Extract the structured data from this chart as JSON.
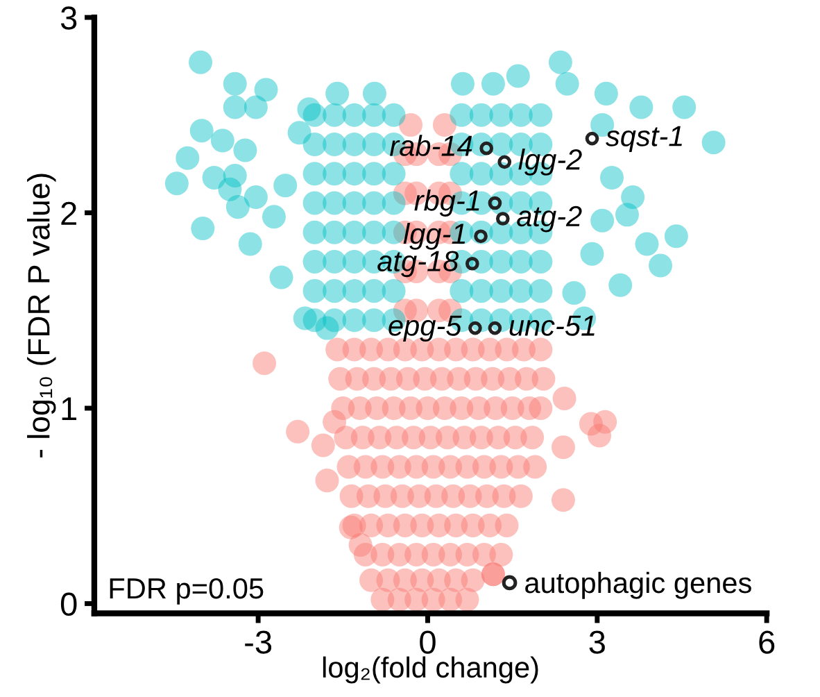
{
  "chart_data": {
    "type": "scatter",
    "xlabel": "log₂(fold change)",
    "ylabel": "- log₁₀ (FDR P value)",
    "xlim": [
      -5.9,
      6
    ],
    "ylim": [
      -0.05,
      3
    ],
    "xticks": [
      -3,
      0,
      3,
      6
    ],
    "yticks": [
      0,
      1,
      2,
      3
    ],
    "grid": false,
    "legend": "bottom right",
    "marker": "circle",
    "series": [
      {
        "color": "#f8766d",
        "x": [
          -0.8,
          -0.5,
          -0.2,
          0.1,
          0.4,
          0.7,
          -1.0,
          -0.7,
          -0.4,
          -0.1,
          0.2,
          0.5,
          0.8,
          1.16,
          -1.1,
          -0.8,
          -0.5,
          -0.2,
          0.1,
          0.4,
          0.7,
          1.0,
          1.3,
          -1.3,
          -1.0,
          -0.7,
          -0.4,
          -0.1,
          0.2,
          0.5,
          0.8,
          1.1,
          1.4,
          -1.35,
          -1.05,
          -0.75,
          -0.45,
          -0.15,
          0.15,
          0.45,
          0.75,
          1.05,
          1.35,
          1.65,
          -1.4,
          -1.1,
          -0.8,
          -0.5,
          -0.2,
          0.1,
          0.4,
          0.7,
          1.0,
          1.3,
          1.6,
          1.9,
          -1.45,
          -1.15,
          -0.85,
          -0.55,
          -0.25,
          0.05,
          0.35,
          0.65,
          0.95,
          1.25,
          1.55,
          1.85,
          -1.5,
          -1.2,
          -0.9,
          -0.6,
          -0.3,
          0.0,
          0.3,
          0.6,
          0.9,
          1.2,
          1.5,
          1.8,
          2.0,
          -1.55,
          -1.25,
          -0.95,
          -0.65,
          -0.35,
          -0.05,
          0.25,
          0.55,
          0.85,
          1.15,
          1.45,
          1.75,
          2.05,
          -1.6,
          -1.3,
          -1.0,
          -0.7,
          -0.4,
          -0.1,
          0.2,
          0.5,
          0.8,
          1.1,
          1.4,
          1.7,
          2.0,
          -0.4,
          -0.2,
          0.2,
          0.4,
          -0.4,
          -0.2,
          0.2,
          0.4,
          -0.4,
          -0.2,
          0.2,
          0.4,
          -0.4,
          -0.2,
          0.2,
          0.4,
          -0.4,
          -0.2,
          0.2,
          0.4,
          -0.3,
          0.3,
          -2.89,
          -2.3,
          -1.85,
          -1.78,
          -1.65,
          -1.36,
          -1.19,
          2.89,
          3.14,
          3.04,
          2.42,
          2.4,
          2.4,
          1.16
        ],
        "values": [
          0.02,
          0.02,
          0.02,
          0.02,
          0.02,
          0.02,
          0.12,
          0.12,
          0.12,
          0.12,
          0.12,
          0.12,
          0.12,
          0.15,
          0.25,
          0.25,
          0.25,
          0.25,
          0.25,
          0.25,
          0.25,
          0.25,
          0.25,
          0.4,
          0.4,
          0.4,
          0.4,
          0.4,
          0.4,
          0.4,
          0.4,
          0.4,
          0.4,
          0.55,
          0.55,
          0.55,
          0.55,
          0.55,
          0.55,
          0.55,
          0.55,
          0.55,
          0.55,
          0.55,
          0.7,
          0.7,
          0.7,
          0.7,
          0.7,
          0.7,
          0.7,
          0.7,
          0.7,
          0.7,
          0.7,
          0.7,
          0.85,
          0.85,
          0.85,
          0.85,
          0.85,
          0.85,
          0.85,
          0.85,
          0.85,
          0.85,
          0.85,
          0.85,
          1.0,
          1.0,
          1.0,
          1.0,
          1.0,
          1.0,
          1.0,
          1.0,
          1.0,
          1.0,
          1.0,
          1.0,
          1.0,
          1.15,
          1.15,
          1.15,
          1.15,
          1.15,
          1.15,
          1.15,
          1.15,
          1.15,
          1.15,
          1.15,
          1.15,
          1.15,
          1.3,
          1.3,
          1.3,
          1.3,
          1.3,
          1.3,
          1.3,
          1.3,
          1.3,
          1.3,
          1.3,
          1.3,
          1.3,
          1.5,
          1.5,
          1.5,
          1.5,
          1.7,
          1.7,
          1.7,
          1.7,
          1.9,
          1.9,
          1.9,
          1.9,
          2.1,
          2.1,
          2.1,
          2.1,
          2.3,
          2.3,
          2.3,
          2.3,
          2.45,
          2.45,
          1.23,
          0.88,
          0.81,
          0.63,
          0.93,
          0.39,
          0.3,
          0.92,
          0.93,
          0.86,
          1.05,
          0.8,
          0.53,
          0.15
        ]
      },
      {
        "color": "#00bfc4",
        "x": [
          -2.0,
          -1.65,
          -1.3,
          -0.95,
          -0.6,
          0.6,
          0.95,
          1.3,
          1.65,
          2.0,
          -2.0,
          -1.65,
          -1.3,
          -0.95,
          -0.6,
          0.6,
          0.95,
          1.3,
          1.65,
          2.0,
          -2.0,
          -1.65,
          -1.3,
          -0.95,
          -0.6,
          0.6,
          0.95,
          1.3,
          1.65,
          2.0,
          -2.0,
          -1.65,
          -1.3,
          -0.95,
          -0.6,
          0.6,
          0.95,
          1.3,
          1.65,
          2.0,
          -2.0,
          -1.65,
          -1.3,
          -0.95,
          -0.6,
          0.6,
          0.95,
          1.3,
          1.65,
          2.0,
          -2.0,
          -1.65,
          -1.3,
          -0.95,
          -0.6,
          0.6,
          0.95,
          1.3,
          1.65,
          2.0,
          -2.0,
          -1.65,
          -1.3,
          -0.95,
          -0.6,
          0.6,
          0.95,
          1.3,
          1.65,
          2.0,
          -2.0,
          -1.65,
          -1.3,
          -0.95,
          -0.6,
          0.6,
          0.95,
          1.3,
          1.65,
          2.0,
          -4.02,
          -3.41,
          -2.86,
          -3.41,
          -3.04,
          -4.0,
          -3.63,
          -3.23,
          -4.25,
          -4.44,
          -3.78,
          -3.41,
          -3.5,
          -3.04,
          -3.36,
          -3.98,
          -2.72,
          -3.14,
          -2.59,
          -1.6,
          -0.94,
          -2.1,
          -2.27,
          -2.52,
          -2.17,
          -1.78,
          2.35,
          1.6,
          0.62,
          1.16,
          2.47,
          3.16,
          3.78,
          4.54,
          5.06,
          3.09,
          3.26,
          3.63,
          3.53,
          3.09,
          3.88,
          4.4,
          4.12,
          3.41,
          2.91,
          2.59,
          2.77
        ],
        "values": [
          1.45,
          1.45,
          1.45,
          1.45,
          1.45,
          1.45,
          1.45,
          1.45,
          1.45,
          1.45,
          1.6,
          1.6,
          1.6,
          1.6,
          1.6,
          1.6,
          1.6,
          1.6,
          1.6,
          1.6,
          1.75,
          1.75,
          1.75,
          1.75,
          1.75,
          1.75,
          1.75,
          1.75,
          1.75,
          1.75,
          1.9,
          1.9,
          1.9,
          1.9,
          1.9,
          1.9,
          1.9,
          1.9,
          1.9,
          1.9,
          2.05,
          2.05,
          2.05,
          2.05,
          2.05,
          2.05,
          2.05,
          2.05,
          2.05,
          2.05,
          2.2,
          2.2,
          2.2,
          2.2,
          2.2,
          2.2,
          2.2,
          2.2,
          2.2,
          2.2,
          2.35,
          2.35,
          2.35,
          2.35,
          2.35,
          2.35,
          2.35,
          2.35,
          2.35,
          2.35,
          2.5,
          2.5,
          2.5,
          2.5,
          2.5,
          2.5,
          2.5,
          2.5,
          2.5,
          2.5,
          2.77,
          2.66,
          2.63,
          2.54,
          2.54,
          2.42,
          2.37,
          2.32,
          2.28,
          2.15,
          2.18,
          2.19,
          2.12,
          2.08,
          2.03,
          1.92,
          1.98,
          1.84,
          1.67,
          2.61,
          2.61,
          2.53,
          2.41,
          2.14,
          1.46,
          1.41,
          2.77,
          2.7,
          2.66,
          2.66,
          2.66,
          2.61,
          2.54,
          2.54,
          2.36,
          2.45,
          2.18,
          2.08,
          1.99,
          1.96,
          1.84,
          1.88,
          1.73,
          1.63,
          1.79,
          1.59,
          1.46
        ]
      },
      {
        "name": "autophagic genes",
        "color": "#222222",
        "x": [
          1.04,
          1.36,
          2.91,
          1.19,
          1.33,
          0.94,
          0.79,
          0.84,
          1.19
        ],
        "values": [
          2.33,
          2.26,
          2.38,
          2.05,
          1.97,
          1.88,
          1.74,
          1.41,
          1.41
        ]
      }
    ],
    "annotations": [
      {
        "text": "rab-14",
        "x": 1.04,
        "y": 2.33
      },
      {
        "text": "lgg-2",
        "x": 1.36,
        "y": 2.26
      },
      {
        "text": "sqst-1",
        "x": 2.91,
        "y": 2.38
      },
      {
        "text": "rbg-1",
        "x": 1.19,
        "y": 2.05
      },
      {
        "text": "atg-2",
        "x": 1.33,
        "y": 1.97
      },
      {
        "text": "lgg-1",
        "x": 0.94,
        "y": 1.88
      },
      {
        "text": "atg-18",
        "x": 0.79,
        "y": 1.74
      },
      {
        "text": "epg-5",
        "x": 0.84,
        "y": 1.41
      },
      {
        "text": "unc-51",
        "x": 1.19,
        "y": 1.41
      },
      "FDR p=0.05"
    ]
  }
}
